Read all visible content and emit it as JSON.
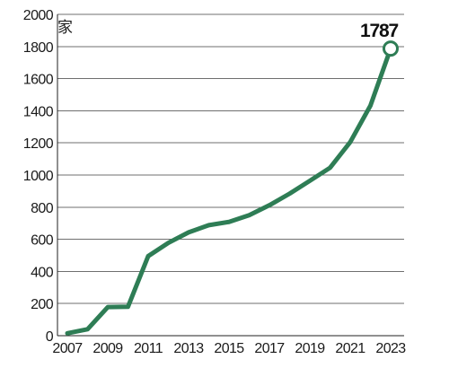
{
  "chart_data": {
    "type": "line",
    "unit_label": "家",
    "x": [
      2007,
      2008,
      2009,
      2010,
      2011,
      2012,
      2013,
      2014,
      2015,
      2016,
      2017,
      2018,
      2019,
      2020,
      2021,
      2022,
      2023
    ],
    "series": [
      {
        "values": [
          15,
          40,
          178,
          180,
          495,
          578,
          643,
          688,
          708,
          750,
          812,
          884,
          964,
          1045,
          1205,
          1432,
          1787
        ],
        "color": "#2e7d55"
      }
    ],
    "x_tick_labels": [
      "2007",
      "2009",
      "2011",
      "2013",
      "2015",
      "2017",
      "2019",
      "2021",
      "2023"
    ],
    "y_tick_labels": [
      "0",
      "200",
      "400",
      "600",
      "800",
      "1000",
      "1200",
      "1400",
      "1600",
      "1800",
      "2000"
    ],
    "xlim": [
      2007,
      2023
    ],
    "ylim": [
      0,
      2000
    ],
    "grid": true,
    "highlight": {
      "year": 2023,
      "value_label": "1787",
      "marker": "hollow-circle"
    }
  }
}
